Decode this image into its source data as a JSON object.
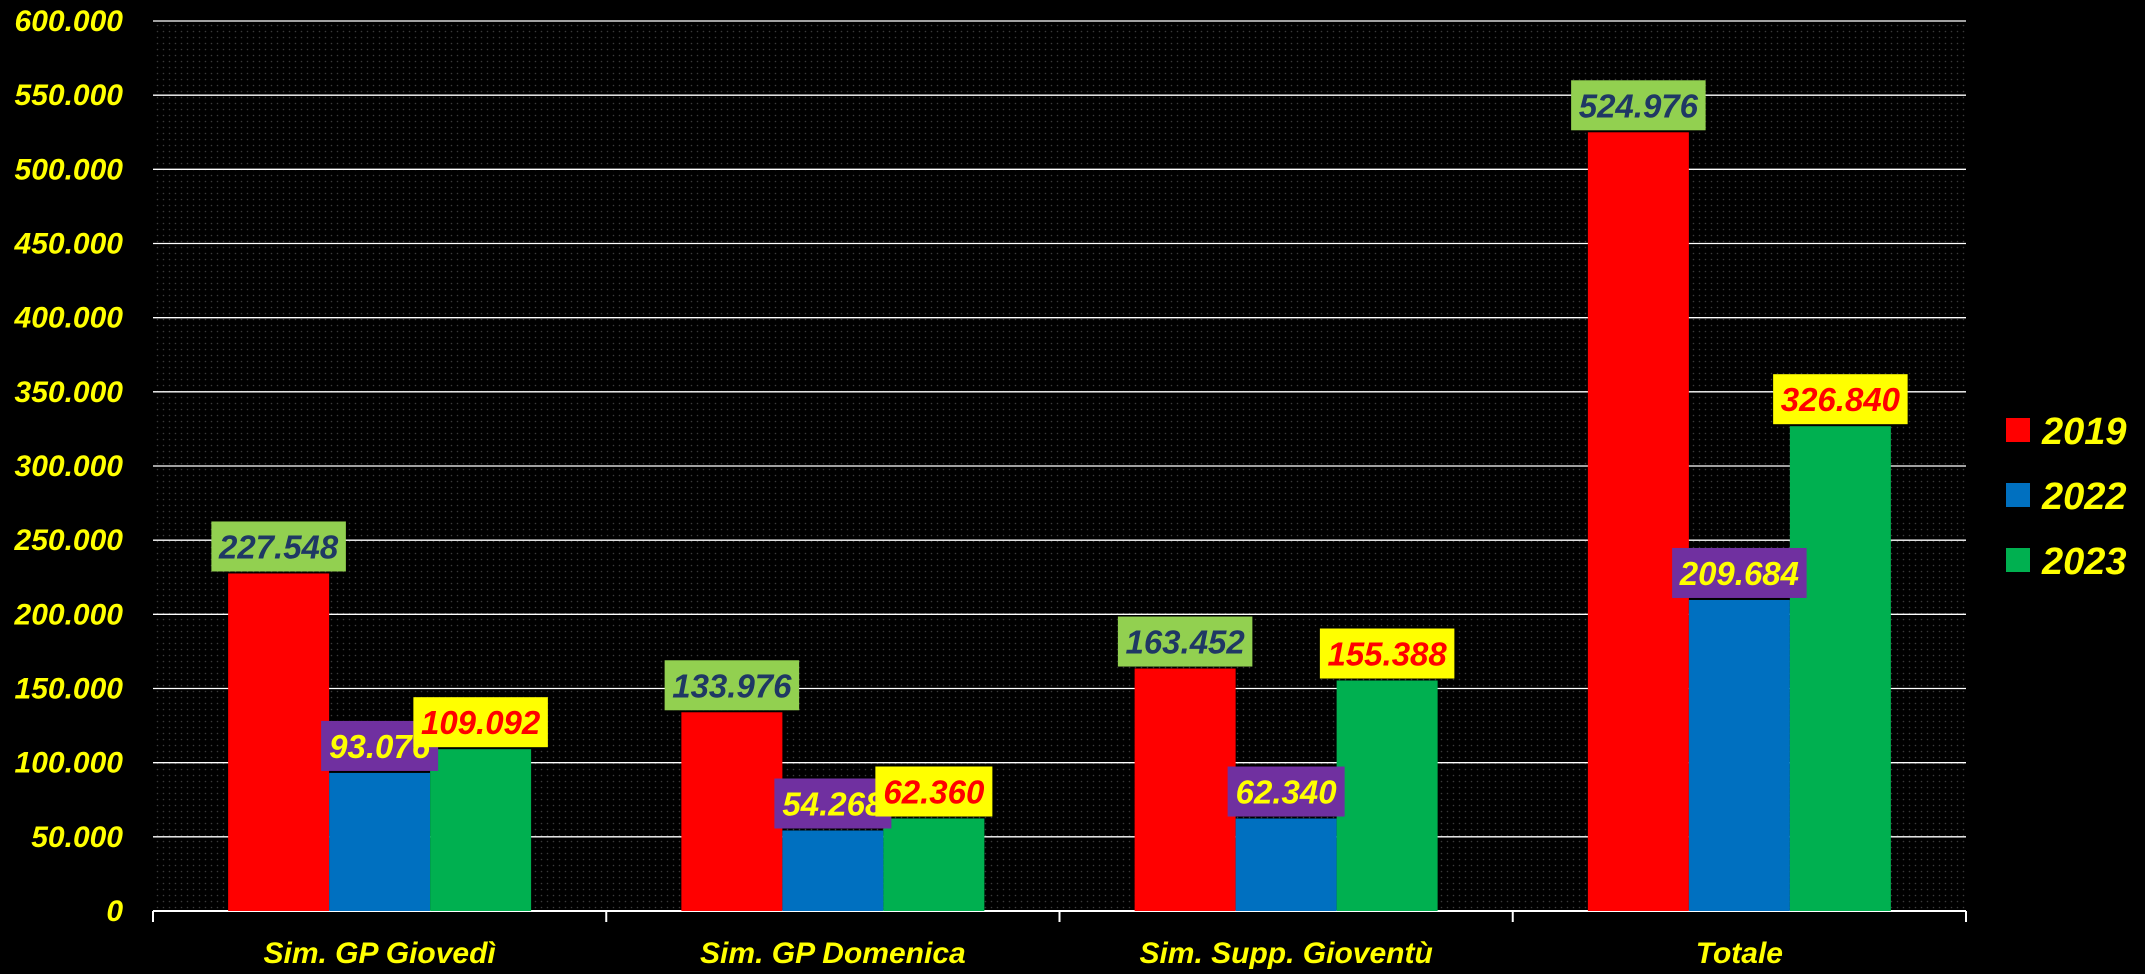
{
  "chart_data": {
    "type": "bar",
    "categories": [
      "Sim. GP Giovedì",
      "Sim. GP Domenica",
      "Sim. Supp. Gioventù",
      "Totale"
    ],
    "series": [
      {
        "name": "2019",
        "color": "#FF0000",
        "values": [
          227548,
          133976,
          163452,
          524976
        ],
        "labels": [
          "227.548",
          "133.976",
          "163.452",
          "524.976"
        ],
        "label_bg": "#92D050",
        "label_color": "#1F3864"
      },
      {
        "name": "2022",
        "color": "#0070C0",
        "values": [
          93076,
          54268,
          62340,
          209684
        ],
        "labels": [
          "93.076",
          "54.268",
          "62.340",
          "209.684"
        ],
        "label_bg": "#7030A0",
        "label_color": "#FFFF00"
      },
      {
        "name": "2023",
        "color": "#00B050",
        "values": [
          109092,
          62360,
          155388,
          326840
        ],
        "labels": [
          "109.092",
          "62.360",
          "155.388",
          "326.840"
        ],
        "label_bg": "#FFFF00",
        "label_color": "#FF0000"
      }
    ],
    "ylim": [
      0,
      600000
    ],
    "yticks": [
      0,
      50000,
      100000,
      150000,
      200000,
      250000,
      300000,
      350000,
      400000,
      450000,
      500000,
      550000,
      600000
    ],
    "ytick_labels": [
      "0",
      "50.000",
      "100.000",
      "150.000",
      "200.000",
      "250.000",
      "300.000",
      "350.000",
      "400.000",
      "450.000",
      "500.000",
      "550.000",
      "600.000"
    ],
    "grid": true,
    "legend": "right",
    "background": "#000000",
    "text_color": "#FFFF00"
  }
}
